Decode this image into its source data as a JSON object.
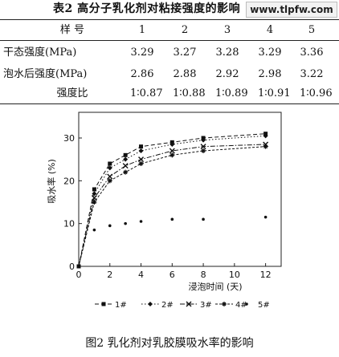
{
  "table": {
    "title": "表2   高分子乳化剂对粘接强度的影响",
    "watermark": "www.tlpfw.com",
    "header": [
      "样  号",
      "1",
      "2",
      "3",
      "4",
      "5"
    ],
    "rows": [
      {
        "label": "干态强度(MPa)",
        "values": [
          "3.29",
          "3.27",
          "3.28",
          "3.29",
          "3.36"
        ]
      },
      {
        "label": "泡水后强度(MPa)",
        "values": [
          "2.86",
          "2.88",
          "2.92",
          "2.98",
          "3.22"
        ]
      },
      {
        "label": "强度比",
        "values": [
          "1∶0.87",
          "1∶0.88",
          "1∶0.89",
          "1∶0.91",
          "1∶0.96"
        ]
      }
    ]
  },
  "chart_data": {
    "type": "line",
    "title": "",
    "xlabel": "浸泡时间 (天)",
    "ylabel": "吸水率 (%)",
    "xlim": [
      0,
      13
    ],
    "ylim": [
      0,
      36
    ],
    "xticks": [
      "0",
      "2",
      "4",
      "6",
      "8",
      "10",
      "12"
    ],
    "yticks": [
      "0",
      "10",
      "20",
      "30"
    ],
    "legend_position": "bottom",
    "series": [
      {
        "name": "1#",
        "style": "dash-square",
        "x": [
          0,
          1,
          2,
          3,
          4,
          6,
          8,
          12
        ],
        "y": [
          0,
          18,
          24,
          26,
          28,
          29,
          30,
          31
        ]
      },
      {
        "name": "2#",
        "style": "dot-diamond",
        "x": [
          0,
          1,
          2,
          3,
          4,
          6,
          8,
          12
        ],
        "y": [
          0,
          17,
          23,
          25,
          27,
          28.5,
          29.5,
          30.5
        ]
      },
      {
        "name": "3#",
        "style": "dashdot-cross",
        "x": [
          0,
          1,
          2,
          3,
          4,
          6,
          8,
          12
        ],
        "y": [
          0,
          16,
          21,
          23.5,
          25,
          27,
          28,
          28.5
        ]
      },
      {
        "name": "4#",
        "style": "dash-star",
        "x": [
          0,
          1,
          2,
          3,
          4,
          6,
          8,
          12
        ],
        "y": [
          0,
          15,
          20,
          22,
          24,
          26,
          27,
          28
        ]
      },
      {
        "name": "5#",
        "style": "points-only",
        "x": [
          0,
          1,
          2,
          3,
          4,
          6,
          8,
          12
        ],
        "y": [
          0,
          8.5,
          9.5,
          10,
          10.5,
          11,
          11,
          11.5
        ]
      }
    ]
  },
  "caption": "图2   乳化剂对乳胶膜吸水率的影响"
}
